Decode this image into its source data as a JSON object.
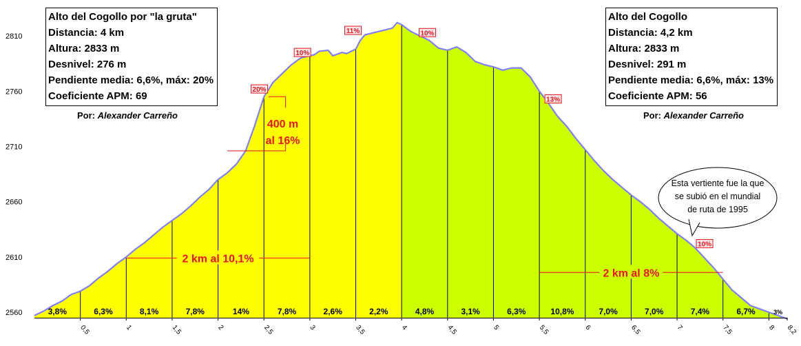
{
  "chart_data": {
    "type": "area",
    "ylim": [
      2555,
      2830
    ],
    "xlim": [
      0,
      8.2
    ],
    "y_ticks": [
      2560,
      2610,
      2660,
      2710,
      2760,
      2810
    ],
    "x_ticks": [
      "0,5",
      "1",
      "1,5",
      "2",
      "2,5",
      "3",
      "3,5",
      "4",
      "4,5",
      "5",
      "5,5",
      "6",
      "6,5",
      "7",
      "7,5",
      "8",
      "8,2"
    ],
    "x_tick_values": [
      0.5,
      1,
      1.5,
      2,
      2.5,
      3,
      3.5,
      4,
      4.5,
      5,
      5.5,
      6,
      6.5,
      7,
      7.5,
      8,
      8.2
    ],
    "profile": [
      [
        0,
        2557
      ],
      [
        0.1,
        2561
      ],
      [
        0.2,
        2566
      ],
      [
        0.3,
        2570
      ],
      [
        0.4,
        2576
      ],
      [
        0.5,
        2579
      ],
      [
        0.6,
        2584
      ],
      [
        0.7,
        2591
      ],
      [
        0.8,
        2597
      ],
      [
        0.9,
        2604
      ],
      [
        1.0,
        2610
      ],
      [
        1.1,
        2617
      ],
      [
        1.2,
        2623
      ],
      [
        1.3,
        2630
      ],
      [
        1.4,
        2637
      ],
      [
        1.5,
        2643
      ],
      [
        1.6,
        2649
      ],
      [
        1.7,
        2656
      ],
      [
        1.8,
        2664
      ],
      [
        1.9,
        2671
      ],
      [
        2.0,
        2680
      ],
      [
        2.1,
        2686
      ],
      [
        2.2,
        2694
      ],
      [
        2.3,
        2706
      ],
      [
        2.4,
        2729
      ],
      [
        2.5,
        2755
      ],
      [
        2.6,
        2768
      ],
      [
        2.7,
        2776
      ],
      [
        2.8,
        2784
      ],
      [
        2.9,
        2790
      ],
      [
        3.0,
        2792
      ],
      [
        3.05,
        2793
      ],
      [
        3.1,
        2796
      ],
      [
        3.2,
        2797
      ],
      [
        3.25,
        2792
      ],
      [
        3.35,
        2795
      ],
      [
        3.4,
        2794
      ],
      [
        3.5,
        2798
      ],
      [
        3.55,
        2806
      ],
      [
        3.6,
        2811
      ],
      [
        3.7,
        2813
      ],
      [
        3.8,
        2815
      ],
      [
        3.9,
        2817
      ],
      [
        3.95,
        2822
      ],
      [
        4.0,
        2820
      ],
      [
        4.1,
        2814
      ],
      [
        4.2,
        2810
      ],
      [
        4.3,
        2806
      ],
      [
        4.4,
        2799
      ],
      [
        4.5,
        2797
      ],
      [
        4.6,
        2800
      ],
      [
        4.7,
        2795
      ],
      [
        4.8,
        2787
      ],
      [
        4.9,
        2784
      ],
      [
        5.0,
        2782
      ],
      [
        5.1,
        2779
      ],
      [
        5.2,
        2781
      ],
      [
        5.3,
        2781
      ],
      [
        5.4,
        2773
      ],
      [
        5.5,
        2760
      ],
      [
        5.6,
        2749
      ],
      [
        5.7,
        2737
      ],
      [
        5.8,
        2728
      ],
      [
        5.9,
        2717
      ],
      [
        6.0,
        2707
      ],
      [
        6.1,
        2697
      ],
      [
        6.2,
        2688
      ],
      [
        6.3,
        2680
      ],
      [
        6.4,
        2673
      ],
      [
        6.5,
        2666
      ],
      [
        6.6,
        2660
      ],
      [
        6.7,
        2653
      ],
      [
        6.8,
        2645
      ],
      [
        6.9,
        2638
      ],
      [
        7.0,
        2631
      ],
      [
        7.1,
        2625
      ],
      [
        7.2,
        2618
      ],
      [
        7.3,
        2609
      ],
      [
        7.4,
        2600
      ],
      [
        7.5,
        2590
      ],
      [
        7.6,
        2580
      ],
      [
        7.7,
        2573
      ],
      [
        7.8,
        2566
      ],
      [
        7.9,
        2563
      ],
      [
        8.0,
        2560
      ],
      [
        8.1,
        2557
      ],
      [
        8.2,
        2554
      ]
    ],
    "split_x": 4,
    "colors": {
      "left_fill": "#ffff00",
      "right_fill": "#ccff00",
      "outline": "#7f7fff",
      "label_red": "#e8141e"
    },
    "segment_grades": [
      {
        "x": 0.25,
        "label": "3,8%"
      },
      {
        "x": 0.75,
        "label": "6,3%"
      },
      {
        "x": 1.25,
        "label": "8,1%"
      },
      {
        "x": 1.75,
        "label": "7,8%"
      },
      {
        "x": 2.25,
        "label": "14%"
      },
      {
        "x": 2.75,
        "label": "7,8%"
      },
      {
        "x": 3.25,
        "label": "2,6%"
      },
      {
        "x": 3.75,
        "label": "2,2%"
      },
      {
        "x": 4.25,
        "label": "4,8%"
      },
      {
        "x": 4.75,
        "label": "3,1%"
      },
      {
        "x": 5.25,
        "label": "6,3%"
      },
      {
        "x": 5.75,
        "label": "10,8%"
      },
      {
        "x": 6.25,
        "label": "7,0%"
      },
      {
        "x": 6.75,
        "label": "7,0%"
      },
      {
        "x": 7.25,
        "label": "7,4%"
      },
      {
        "x": 7.75,
        "label": "6,7%"
      },
      {
        "x": 8.1,
        "label": "3%"
      }
    ],
    "max_grades": [
      {
        "x": 2.45,
        "y": 2762,
        "label": "20%"
      },
      {
        "x": 2.92,
        "y": 2795,
        "label": "10%"
      },
      {
        "x": 3.47,
        "y": 2815,
        "label": "11%"
      },
      {
        "x": 4.28,
        "y": 2813,
        "label": "10%"
      },
      {
        "x": 5.65,
        "y": 2753,
        "label": "13%"
      },
      {
        "x": 7.3,
        "y": 2622,
        "label": "10%"
      }
    ],
    "annotations": [
      {
        "text": "2 km al 10,1%",
        "x1": 1.0,
        "x2": 3.0,
        "y": 2609
      },
      {
        "text": "2 km al 8%",
        "x1": 5.5,
        "x2": 7.5,
        "y": 2596
      },
      {
        "text": "400 m",
        "x": 2.6,
        "y": 2731
      },
      {
        "text": "al 16%",
        "x": 2.6,
        "y": 2716
      }
    ]
  },
  "left_box": {
    "title": "Alto del Cogollo por \"la gruta\"",
    "distance": "Distancia: 4 km",
    "height": "Altura: 2833 m",
    "gain": "Desnivel: 276 m",
    "grade": "Pendiente media: 6,6%, máx: 20%",
    "apm": "Coeficiente APM: 69",
    "author_prefix": "Por: ",
    "author_name": "Alexander Carreño"
  },
  "right_box": {
    "title": "Alto del Cogollo",
    "distance": "Distancia: 4,2 km",
    "height": "Altura: 2833 m",
    "gain": "Desnivel: 291 m",
    "grade": "Pendiente media: 6,6%, máx: 13%",
    "apm": "Coeficiente APM: 56",
    "author_prefix": "Por: ",
    "author_name": "Alexander Carreño"
  },
  "bubble": {
    "line1": "Esta vertiente fue la que",
    "line2": "se subió en el mundial",
    "line3": "de ruta de 1995"
  }
}
